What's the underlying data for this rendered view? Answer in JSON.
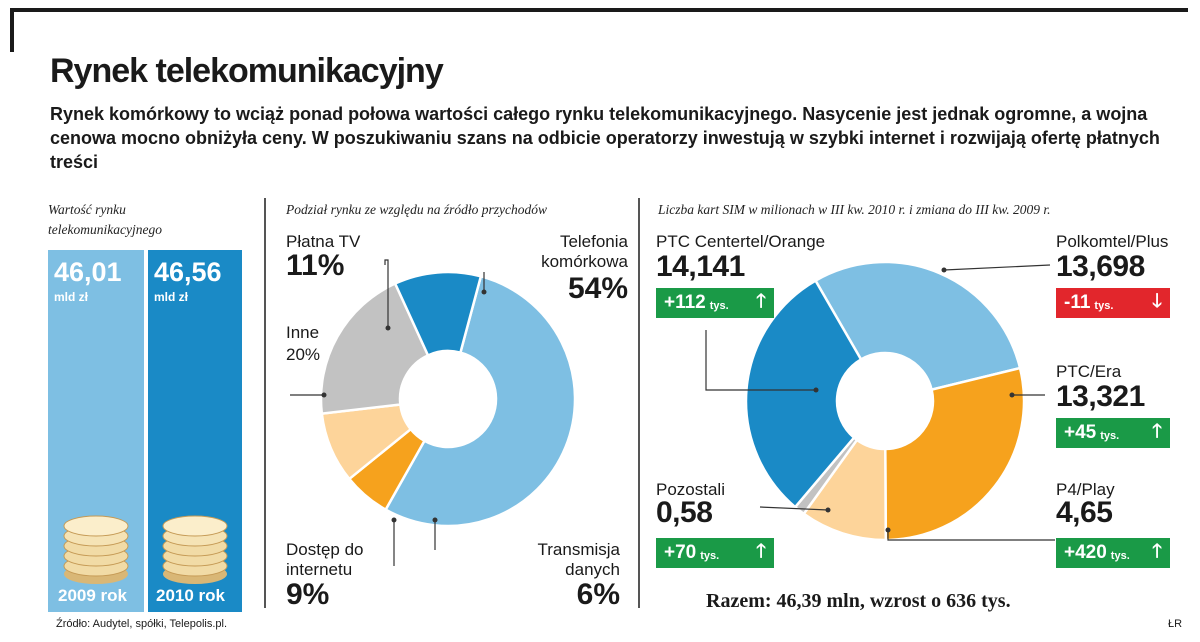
{
  "title": "Rynek telekomunikacyjny",
  "subtitle": "Rynek komórkowy to wciąż ponad połowa wartości całego rynku telekomunikacyjnego. Nasycenie jest jednak ogromne, a wojna cenowa mocno obniżyła ceny. W poszukiwaniu szans na odbicie operatorzy inwestują w szybki internet i rozwijają ofertę płatnych treści",
  "colors": {
    "light_blue": "#7ebfe3",
    "dark_blue": "#1a8ac6",
    "gray": "#c2c2c2",
    "peach": "#fdd49a",
    "orange": "#f6a21d",
    "green": "#1a9a47",
    "red": "#e2262c"
  },
  "panel1": {
    "label": "Wartość rynku telekomunikacyjnego",
    "bars": [
      {
        "value": "46,01",
        "unit": "mld zł",
        "year": "2009 rok"
      },
      {
        "value": "46,56",
        "unit": "mld zł",
        "year": "2010 rok"
      }
    ]
  },
  "panel2": {
    "label": "Podział rynku ze względu na źródło przychodów",
    "labels": {
      "platna_name": "Płatna TV",
      "platna_pct": "11%",
      "tel_name_1": "Telefonia",
      "tel_name_2": "komórkowa",
      "tel_pct": "54%",
      "inne_name": "Inne",
      "inne_pct": "20%",
      "dost_name_1": "Dostęp do",
      "dost_name_2": "internetu",
      "dost_pct": "9%",
      "trans_name_1": "Transmisja",
      "trans_name_2": "danych",
      "trans_pct": "6%"
    }
  },
  "panel3": {
    "label": "Liczba kart SIM w milionach w III kw. 2010 r. i zmiana do III kw. 2009 r.",
    "operators": {
      "orange": {
        "name": "PTC Centertel/Orange",
        "value": "14,141",
        "change": "+112",
        "unit": "tys.",
        "arrow": "🡑"
      },
      "plus": {
        "name": "Polkomtel/Plus",
        "value": "13,698",
        "change": "-11",
        "unit": "tys.",
        "arrow": "🡓"
      },
      "era": {
        "name": "PTC/Era",
        "value": "13,321",
        "change": "+45",
        "unit": "tys.",
        "arrow": "🡑"
      },
      "pozostali": {
        "name": "Pozostali",
        "value": "0,58",
        "change": "+70",
        "unit": "tys.",
        "arrow": "🡑"
      },
      "play": {
        "name": "P4/Play",
        "value": "4,65",
        "change": "+420",
        "unit": "tys.",
        "arrow": "🡑"
      }
    },
    "total": "Razem: 46,39 mln, wzrost o 636 tys."
  },
  "footer": {
    "source": "Źródło: Audytel, spółki, Telepolis.pl.",
    "author": "ŁR"
  },
  "chart_data": [
    {
      "type": "bar",
      "title": "Wartość rynku telekomunikacyjnego",
      "categories": [
        "2009 rok",
        "2010 rok"
      ],
      "values": [
        46.01,
        46.56
      ],
      "unit": "mld zł"
    },
    {
      "type": "pie",
      "title": "Podział rynku ze względu na źródło przychodów",
      "categories": [
        "Telefonia komórkowa",
        "Transmisja danych",
        "Dostęp do internetu",
        "Inne",
        "Płatna TV"
      ],
      "values": [
        54,
        6,
        9,
        20,
        11
      ],
      "colors": [
        "#7ebfe3",
        "#f6a21d",
        "#fdd49a",
        "#c2c2c2",
        "#1a8ac6"
      ]
    },
    {
      "type": "pie",
      "title": "Liczba kart SIM w milionach w III kw. 2010 r. i zmiana do III kw. 2009 r.",
      "categories": [
        "Polkomtel/Plus",
        "PTC/Era",
        "P4/Play",
        "Pozostali",
        "PTC Centertel/Orange"
      ],
      "values": [
        13.698,
        13.321,
        4.65,
        0.58,
        14.141
      ],
      "change_tys": [
        -11,
        45,
        420,
        70,
        112
      ],
      "colors": [
        "#7ebfe3",
        "#f6a21d",
        "#fdd49a",
        "#c2c2c2",
        "#1a8ac6"
      ]
    }
  ]
}
